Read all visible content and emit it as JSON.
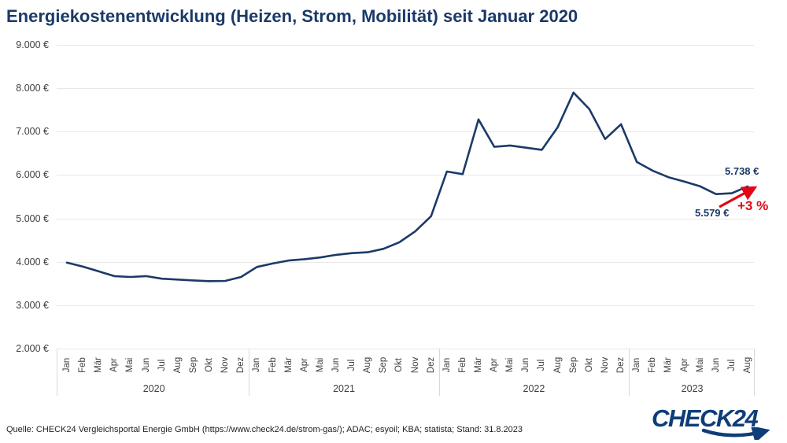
{
  "title": "Energiekostenentwicklung (Heizen, Strom, Mobilität) seit Januar 2020",
  "colors": {
    "line": "#1b3a68",
    "title_text": "#1b3a68",
    "accent_red": "#e30613",
    "grid": "#e8e8e8",
    "axis_text": "#3f3f3f",
    "logo_blue": "#0e3d78"
  },
  "y_axis": {
    "tick_labels": [
      "9.000 €",
      "8.000 €",
      "7.000 €",
      "6.000 €",
      "5.000 €",
      "4.000 €",
      "3.000 €",
      "2.000 €"
    ],
    "min": 2000,
    "max": 9000,
    "step": 1000
  },
  "x_axis": {
    "month_labels": [
      "Jan",
      "Feb",
      "Mär",
      "Apr",
      "Mai",
      "Jun",
      "Jul",
      "Aug",
      "Sep",
      "Okt",
      "Nov",
      "Dez"
    ],
    "years": [
      {
        "label": "2020",
        "num_months": 12
      },
      {
        "label": "2021",
        "num_months": 12
      },
      {
        "label": "2022",
        "num_months": 12
      },
      {
        "label": "2023",
        "num_months": 8
      }
    ]
  },
  "chart_data": {
    "type": "line",
    "title": "Energiekostenentwicklung (Heizen, Strom, Mobilität) seit Januar 2020",
    "unit": "€",
    "ylim": [
      2000,
      9000
    ],
    "grid": true,
    "categories": [
      "Jan 2020",
      "Feb 2020",
      "Mär 2020",
      "Apr 2020",
      "Mai 2020",
      "Jun 2020",
      "Jul 2020",
      "Aug 2020",
      "Sep 2020",
      "Okt 2020",
      "Nov 2020",
      "Dez 2020",
      "Jan 2021",
      "Feb 2021",
      "Mär 2021",
      "Apr 2021",
      "Mai 2021",
      "Jun 2021",
      "Jul 2021",
      "Aug 2021",
      "Sep 2021",
      "Okt 2021",
      "Nov 2021",
      "Dez 2021",
      "Jan 2022",
      "Feb 2022",
      "Mär 2022",
      "Apr 2022",
      "Mai 2022",
      "Jun 2022",
      "Jul 2022",
      "Aug 2022",
      "Sep 2022",
      "Okt 2022",
      "Nov 2022",
      "Dez 2022",
      "Jan 2023",
      "Feb 2023",
      "Mär 2023",
      "Apr 2023",
      "Mai 2023",
      "Jun 2023",
      "Jul 2023",
      "Aug 2023"
    ],
    "series": [
      {
        "name": "Energiekosten (Heizen, Strom, Mobilität)",
        "values": [
          3980,
          3890,
          3780,
          3670,
          3650,
          3670,
          3610,
          3590,
          3570,
          3555,
          3560,
          3650,
          3880,
          3960,
          4030,
          4060,
          4100,
          4160,
          4200,
          4220,
          4300,
          4450,
          4700,
          5050,
          6080,
          6020,
          7280,
          6650,
          6680,
          6630,
          6580,
          7100,
          7900,
          7520,
          6830,
          7170,
          6300,
          6100,
          5950,
          5850,
          5740,
          5560,
          5579,
          5738
        ]
      }
    ],
    "annotations": [
      {
        "text": "5.738 €",
        "category": "Aug 2023",
        "value": 5738
      },
      {
        "text": "5.579 €",
        "category": "Jul 2023",
        "value": 5579
      },
      {
        "text": "+3 %",
        "meaning": "Anstieg von 5.579 € auf 5.738 €"
      }
    ]
  },
  "annotations": {
    "end_value_label": "5.738 €",
    "low_value_label": "5.579 €",
    "percent_label": "+3 %"
  },
  "footer": {
    "source": "Quelle: CHECK24 Vergleichsportal Energie GmbH (https://www.check24.de/strom-gas/); ADAC; esyoil; KBA; statista; Stand: 31.8.2023"
  },
  "logo": {
    "text": "CHECK24"
  }
}
